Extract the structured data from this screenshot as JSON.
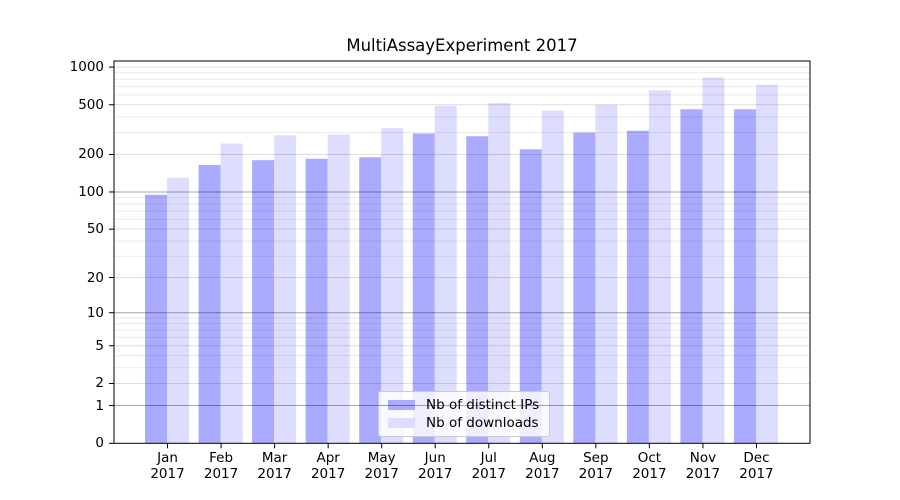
{
  "chart_data": {
    "type": "bar",
    "title": "MultiAssayExperiment 2017",
    "categories": [
      "Jan",
      "Feb",
      "Mar",
      "Apr",
      "May",
      "Jun",
      "Jul",
      "Aug",
      "Sep",
      "Oct",
      "Nov",
      "Dec"
    ],
    "x_year_label": "2017",
    "series": [
      {
        "name": "Nb of distinct IPs",
        "color": "#aaaaff",
        "values": [
          95,
          165,
          180,
          185,
          190,
          295,
          280,
          220,
          300,
          310,
          460,
          460
        ]
      },
      {
        "name": "Nb of downloads",
        "color": "#ddddff",
        "values": [
          130,
          245,
          285,
          290,
          325,
          490,
          515,
          450,
          500,
          650,
          825,
          725
        ]
      }
    ],
    "yscale": "log(1+y)",
    "ylim": [
      0,
      1118
    ],
    "yticks": [
      0,
      1,
      2,
      5,
      10,
      20,
      50,
      100,
      200,
      500,
      1000
    ],
    "grid": "horizontal major and minor, drawn above bars",
    "legend_position": "lower center inside plot"
  },
  "colors": {
    "spine": "#000000",
    "grid_minor": "rgba(0,0,0,0.08)",
    "grid_major": "rgba(0,0,0,0.13)",
    "grid_emphasis": "rgba(0,0,0,0.35)",
    "text": "#000000"
  }
}
